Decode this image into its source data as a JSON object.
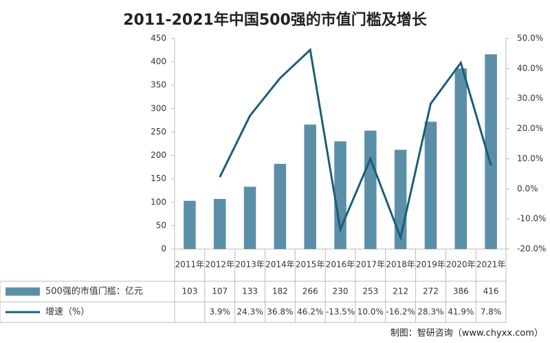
{
  "chart_data": {
    "type": "bar-line",
    "title": "2011-2021年中国500强的市值门槛及增长",
    "categories": [
      "2011年",
      "2012年",
      "2013年",
      "2014年",
      "2015年",
      "2016年",
      "2017年",
      "2018年",
      "2019年",
      "2020年",
      "2021年"
    ],
    "series": [
      {
        "name": "500强的市值门槛：亿元",
        "type": "bar",
        "color": "#5b8fa8",
        "values": [
          103,
          107,
          133,
          182,
          266,
          230,
          253,
          212,
          272,
          386,
          416
        ]
      },
      {
        "name": "增速（%）",
        "type": "line",
        "axis": "y2",
        "color": "#1b5d78",
        "values": [
          null,
          3.9,
          24.3,
          36.8,
          46.2,
          -13.5,
          10.0,
          -16.2,
          28.3,
          41.9,
          7.8
        ],
        "value_labels": [
          null,
          "3.9%",
          "24.3%",
          "36.8%",
          "46.2%",
          "-13.5%",
          "10.0%",
          "-16.2%",
          "28.3%",
          "41.9%",
          "7.8%"
        ]
      }
    ],
    "ylim": [
      0,
      450
    ],
    "yticks": [
      0,
      50,
      100,
      150,
      200,
      250,
      300,
      350,
      400,
      450
    ],
    "y2lim": [
      -20,
      50
    ],
    "y2ticks": [
      {
        "value": -20,
        "label": "-20.0%"
      },
      {
        "value": -10,
        "label": "-10.0%"
      },
      {
        "value": 0,
        "label": "0.0%"
      },
      {
        "value": 10,
        "label": "10.0%"
      },
      {
        "value": 20,
        "label": "20.0%"
      },
      {
        "value": 30,
        "label": "30.0%"
      },
      {
        "value": 40,
        "label": "40.0%"
      },
      {
        "value": 50,
        "label": "50.0%"
      }
    ],
    "source": "制图：智研咨询（www.chyxx.com）"
  }
}
